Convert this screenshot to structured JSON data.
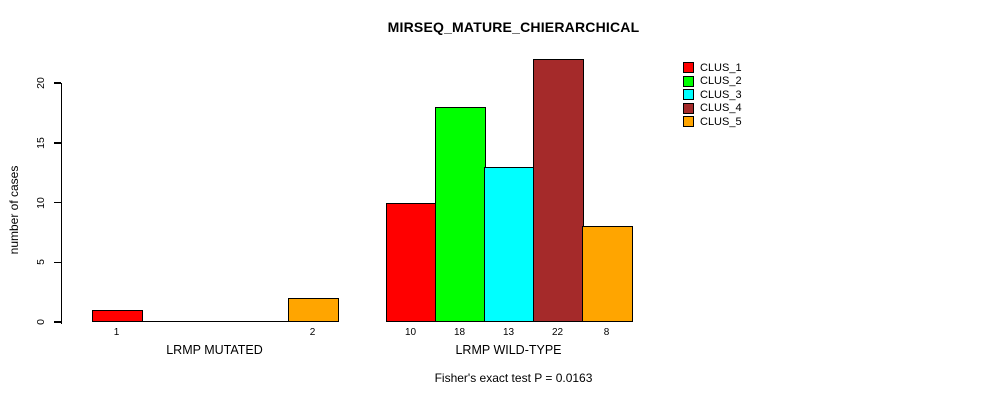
{
  "chart_data": {
    "type": "bar",
    "title": "MIRSEQ_MATURE_CHIERARCHICAL",
    "xlabel": "",
    "ylabel": "number of cases",
    "yticks": [
      0,
      5,
      10,
      15,
      20
    ],
    "ylim": [
      0,
      22
    ],
    "grid": false,
    "legend_position": "right",
    "background": "#FFFFFF",
    "axis_color": "#000000",
    "series": [
      {
        "name": "CLUS_1",
        "color": "#FF0000"
      },
      {
        "name": "CLUS_2",
        "color": "#00FF00"
      },
      {
        "name": "CLUS_3",
        "color": "#00FFFF"
      },
      {
        "name": "CLUS_4",
        "color": "#A52A2A"
      },
      {
        "name": "CLUS_5",
        "color": "#FFA500"
      }
    ],
    "groups": [
      {
        "label": "LRMP MUTATED",
        "values": [
          1,
          0,
          0,
          0,
          2
        ],
        "bar_labels": [
          "1",
          "",
          "",
          "",
          "2"
        ]
      },
      {
        "label": "LRMP WILD-TYPE",
        "values": [
          10,
          18,
          13,
          22,
          8
        ],
        "bar_labels": [
          "10",
          "18",
          "13",
          "22",
          "8"
        ]
      }
    ],
    "annotation": "Fisher's exact test P = 0.0163"
  }
}
